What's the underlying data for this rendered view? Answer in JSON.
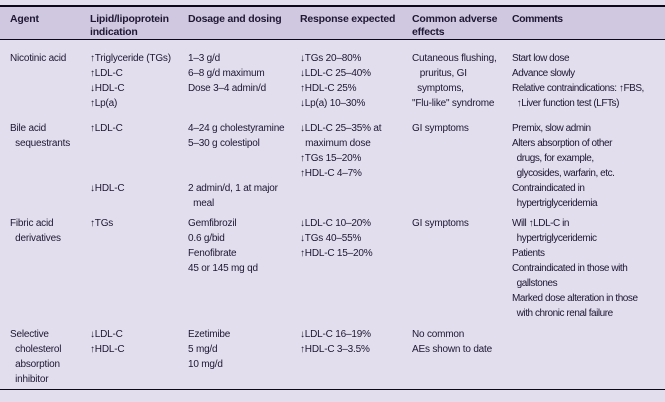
{
  "table": {
    "headers": [
      "Agent",
      "Lipid/lipoprotein\nindication",
      "Dosage and dosing",
      "Response expected",
      "Common adverse\neffects",
      "Comments"
    ],
    "rows": [
      {
        "agent": "Nicotinic acid",
        "indication": "↑Triglyceride (TGs)\n↑LDL-C\n↓HDL-C\n↑Lp(a)",
        "dosage": "1–3 g/d\n6–8 g/d maximum\nDose 3–4 admin/d",
        "response": "↓TGs 20–80%\n↓LDL-C 25–40%\n↑HDL-C 25%\n↓Lp(a) 10–30%",
        "adverse": "Cutaneous flushing,\n   pruritus, GI\n  symptoms,\n\"Flu-like\" syndrome",
        "comments": "Start low dose\nAdvance slowly\nRelative contraindications: ↑FBS,\n  ↑Liver function test (LFTs)"
      },
      {
        "agent": "Bile acid\n  sequestrants",
        "indication": "↑LDL-C\n\n\n\n↓HDL-C",
        "dosage": "4–24 g cholestyramine\n5–30 g colestipol\n\n\n2 admin/d, 1 at major\n  meal",
        "response": "↓LDL-C 25–35% at\n  maximum dose\n↑TGs 15–20%\n↑HDL-C 4–7%",
        "adverse": "GI symptoms",
        "comments": "Premix, slow admin\nAlters absorption of other\n  drugs, for example,\n  glycosides, warfarin, etc.\nContraindicated in\n  hypertriglyceridemia"
      },
      {
        "agent": "Fibric acid\n  derivatives",
        "indication": "↑TGs",
        "dosage": "Gemfibrozil\n0.6 g/bid\nFenofibrate\n45 or 145 mg qd",
        "response": "↓LDL-C 10–20%\n↓TGs 40–55%\n↑HDL-C 15–20%",
        "adverse": "GI symptoms",
        "comments": "Will ↑LDL-C in\n  hypertriglyceridemic\nPatients\nContraindicated in those with\n  gallstones\nMarked dose alteration in those\n  with chronic renal failure"
      },
      {
        "agent": "Selective\n  cholesterol\n  absorption\n  inhibitor",
        "indication": "↓LDL-C\n↑HDL-C",
        "dosage": "Ezetimibe\n5 mg/d\n10 mg/d",
        "response": "↓LDL-C 16–19%\n↑HDL-C 3–3.5%",
        "adverse": "No common\nAEs shown to date",
        "comments": ""
      }
    ],
    "colors": {
      "page_bg": "#e2deed",
      "header_bg": "#cfc8e0",
      "text": "#1f1733",
      "rule": "#0c0818"
    }
  }
}
